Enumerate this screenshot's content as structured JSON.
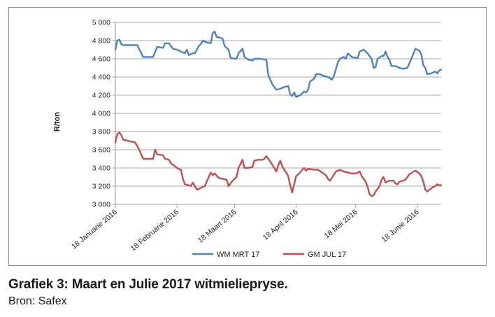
{
  "caption": {
    "title": "Grafiek 3: Maart en Julie 2017 witmieliepryse.",
    "source": "Bron: Safex"
  },
  "chart_data": {
    "type": "line",
    "ylabel": "R/ton",
    "xlabel": "",
    "ylim": [
      3000,
      5000
    ],
    "yticks": [
      3000,
      3200,
      3400,
      3600,
      3800,
      4000,
      4200,
      4400,
      4600,
      4800,
      5000
    ],
    "ytick_labels": [
      "3 000",
      "3 200",
      "3 400",
      "3 600",
      "3 800",
      "4 000",
      "4 200",
      "4 400",
      "4 600",
      "4 800",
      "5 000"
    ],
    "xlim": [
      "2016-01-18",
      "2016-06-30"
    ],
    "xticks": [
      "2016-01-18",
      "2016-02-18",
      "2016-03-18",
      "2016-04-18",
      "2016-05-18",
      "2016-06-18"
    ],
    "xtick_labels": [
      "18 Januarie 2016",
      "18 Februarie 2016",
      "18 Maart 2016",
      "18 April 2016",
      "18 Mei 2016",
      "18 Junie 2016"
    ],
    "grid": true,
    "legend_position": "bottom",
    "series": [
      {
        "name": "WM MRT 17",
        "color": "#4f81bd",
        "points": [
          [
            "2016-01-18",
            4700
          ],
          [
            "2016-01-19",
            4800
          ],
          [
            "2016-01-20",
            4810
          ],
          [
            "2016-01-21",
            4760
          ],
          [
            "2016-01-22",
            4750
          ],
          [
            "2016-01-26",
            4750
          ],
          [
            "2016-01-29",
            4750
          ],
          [
            "2016-02-01",
            4620
          ],
          [
            "2016-02-04",
            4620
          ],
          [
            "2016-02-06",
            4620
          ],
          [
            "2016-02-08",
            4730
          ],
          [
            "2016-02-11",
            4720
          ],
          [
            "2016-02-12",
            4770
          ],
          [
            "2016-02-14",
            4770
          ],
          [
            "2016-02-16",
            4710
          ],
          [
            "2016-02-18",
            4700
          ],
          [
            "2016-02-20",
            4680
          ],
          [
            "2016-02-22",
            4660
          ],
          [
            "2016-02-23",
            4700
          ],
          [
            "2016-02-24",
            4640
          ],
          [
            "2016-02-26",
            4660
          ],
          [
            "2016-02-27",
            4660
          ],
          [
            "2016-02-29",
            4740
          ],
          [
            "2016-03-01",
            4760
          ],
          [
            "2016-03-02",
            4800
          ],
          [
            "2016-03-04",
            4780
          ],
          [
            "2016-03-06",
            4770
          ],
          [
            "2016-03-07",
            4880
          ],
          [
            "2016-03-08",
            4900
          ],
          [
            "2016-03-09",
            4840
          ],
          [
            "2016-03-11",
            4830
          ],
          [
            "2016-03-12",
            4820
          ],
          [
            "2016-03-13",
            4740
          ],
          [
            "2016-03-15",
            4700
          ],
          [
            "2016-03-16",
            4610
          ],
          [
            "2016-03-18",
            4600
          ],
          [
            "2016-03-19",
            4600
          ],
          [
            "2016-03-20",
            4660
          ],
          [
            "2016-03-22",
            4710
          ],
          [
            "2016-03-23",
            4620
          ],
          [
            "2016-03-25",
            4590
          ],
          [
            "2016-03-27",
            4580
          ],
          [
            "2016-03-28",
            4600
          ],
          [
            "2016-03-31",
            4600
          ],
          [
            "2016-04-03",
            4590
          ],
          [
            "2016-04-04",
            4420
          ],
          [
            "2016-04-06",
            4320
          ],
          [
            "2016-04-08",
            4260
          ],
          [
            "2016-04-10",
            4270
          ],
          [
            "2016-04-12",
            4290
          ],
          [
            "2016-04-14",
            4300
          ],
          [
            "2016-04-15",
            4210
          ],
          [
            "2016-04-16",
            4190
          ],
          [
            "2016-04-17",
            4230
          ],
          [
            "2016-04-18",
            4180
          ],
          [
            "2016-04-20",
            4200
          ],
          [
            "2016-04-22",
            4240
          ],
          [
            "2016-04-23",
            4230
          ],
          [
            "2016-04-24",
            4260
          ],
          [
            "2016-04-25",
            4350
          ],
          [
            "2016-04-27",
            4380
          ],
          [
            "2016-04-28",
            4430
          ],
          [
            "2016-04-30",
            4430
          ],
          [
            "2016-05-02",
            4410
          ],
          [
            "2016-05-04",
            4400
          ],
          [
            "2016-05-06",
            4370
          ],
          [
            "2016-05-07",
            4410
          ],
          [
            "2016-05-09",
            4560
          ],
          [
            "2016-05-10",
            4600
          ],
          [
            "2016-05-12",
            4620
          ],
          [
            "2016-05-13",
            4600
          ],
          [
            "2016-05-14",
            4660
          ],
          [
            "2016-05-15",
            4640
          ],
          [
            "2016-05-16",
            4620
          ],
          [
            "2016-05-18",
            4610
          ],
          [
            "2016-05-19",
            4610
          ],
          [
            "2016-05-20",
            4680
          ],
          [
            "2016-05-22",
            4700
          ],
          [
            "2016-05-24",
            4660
          ],
          [
            "2016-05-26",
            4600
          ],
          [
            "2016-05-27",
            4500
          ],
          [
            "2016-05-28",
            4510
          ],
          [
            "2016-05-29",
            4600
          ],
          [
            "2016-05-31",
            4630
          ],
          [
            "2016-06-01",
            4630
          ],
          [
            "2016-06-02",
            4680
          ],
          [
            "2016-06-03",
            4620
          ],
          [
            "2016-06-04",
            4590
          ],
          [
            "2016-06-05",
            4520
          ],
          [
            "2016-06-07",
            4520
          ],
          [
            "2016-06-09",
            4500
          ],
          [
            "2016-06-11",
            4490
          ],
          [
            "2016-06-13",
            4500
          ],
          [
            "2016-06-15",
            4600
          ],
          [
            "2016-06-17",
            4710
          ],
          [
            "2016-06-19",
            4690
          ],
          [
            "2016-06-20",
            4650
          ],
          [
            "2016-06-21",
            4530
          ],
          [
            "2016-06-22",
            4500
          ],
          [
            "2016-06-23",
            4430
          ],
          [
            "2016-06-25",
            4440
          ],
          [
            "2016-06-27",
            4460
          ],
          [
            "2016-06-28",
            4440
          ],
          [
            "2016-06-29",
            4470
          ],
          [
            "2016-06-30",
            4480
          ]
        ]
      },
      {
        "name": "GM JUL 17",
        "color": "#c0504d",
        "points": [
          [
            "2016-01-18",
            3680
          ],
          [
            "2016-01-19",
            3770
          ],
          [
            "2016-01-20",
            3790
          ],
          [
            "2016-01-21",
            3760
          ],
          [
            "2016-01-22",
            3710
          ],
          [
            "2016-01-26",
            3690
          ],
          [
            "2016-01-28",
            3680
          ],
          [
            "2016-01-30",
            3600
          ],
          [
            "2016-02-01",
            3500
          ],
          [
            "2016-02-04",
            3500
          ],
          [
            "2016-02-06",
            3500
          ],
          [
            "2016-02-07",
            3600
          ],
          [
            "2016-02-08",
            3550
          ],
          [
            "2016-02-11",
            3540
          ],
          [
            "2016-02-12",
            3500
          ],
          [
            "2016-02-14",
            3490
          ],
          [
            "2016-02-15",
            3450
          ],
          [
            "2016-02-17",
            3420
          ],
          [
            "2016-02-18",
            3400
          ],
          [
            "2016-02-20",
            3380
          ],
          [
            "2016-02-21",
            3280
          ],
          [
            "2016-02-22",
            3220
          ],
          [
            "2016-02-24",
            3210
          ],
          [
            "2016-02-25",
            3200
          ],
          [
            "2016-02-26",
            3240
          ],
          [
            "2016-02-27",
            3200
          ],
          [
            "2016-02-28",
            3160
          ],
          [
            "2016-03-01",
            3180
          ],
          [
            "2016-03-03",
            3200
          ],
          [
            "2016-03-05",
            3300
          ],
          [
            "2016-03-06",
            3350
          ],
          [
            "2016-03-07",
            3320
          ],
          [
            "2016-03-08",
            3340
          ],
          [
            "2016-03-10",
            3290
          ],
          [
            "2016-03-12",
            3280
          ],
          [
            "2016-03-14",
            3270
          ],
          [
            "2016-03-15",
            3200
          ],
          [
            "2016-03-17",
            3260
          ],
          [
            "2016-03-19",
            3300
          ],
          [
            "2016-03-20",
            3400
          ],
          [
            "2016-03-22",
            3490
          ],
          [
            "2016-03-23",
            3400
          ],
          [
            "2016-03-25",
            3400
          ],
          [
            "2016-03-27",
            3410
          ],
          [
            "2016-03-28",
            3480
          ],
          [
            "2016-03-30",
            3490
          ],
          [
            "2016-04-01",
            3490
          ],
          [
            "2016-04-02",
            3500
          ],
          [
            "2016-04-03",
            3530
          ],
          [
            "2016-04-04",
            3500
          ],
          [
            "2016-04-05",
            3470
          ],
          [
            "2016-04-07",
            3400
          ],
          [
            "2016-04-08",
            3360
          ],
          [
            "2016-04-09",
            3430
          ],
          [
            "2016-04-10",
            3480
          ],
          [
            "2016-04-11",
            3420
          ],
          [
            "2016-04-12",
            3380
          ],
          [
            "2016-04-13",
            3350
          ],
          [
            "2016-04-14",
            3310
          ],
          [
            "2016-04-15",
            3210
          ],
          [
            "2016-04-16",
            3130
          ],
          [
            "2016-04-18",
            3310
          ],
          [
            "2016-04-20",
            3350
          ],
          [
            "2016-04-21",
            3380
          ],
          [
            "2016-04-22",
            3400
          ],
          [
            "2016-04-23",
            3370
          ],
          [
            "2016-04-24",
            3390
          ],
          [
            "2016-04-27",
            3380
          ],
          [
            "2016-04-29",
            3380
          ],
          [
            "2016-05-01",
            3350
          ],
          [
            "2016-05-03",
            3320
          ],
          [
            "2016-05-04",
            3280
          ],
          [
            "2016-05-05",
            3260
          ],
          [
            "2016-05-06",
            3290
          ],
          [
            "2016-05-08",
            3360
          ],
          [
            "2016-05-10",
            3380
          ],
          [
            "2016-05-11",
            3370
          ],
          [
            "2016-05-12",
            3360
          ],
          [
            "2016-05-14",
            3350
          ],
          [
            "2016-05-16",
            3340
          ],
          [
            "2016-05-18",
            3340
          ],
          [
            "2016-05-20",
            3360
          ],
          [
            "2016-05-21",
            3310
          ],
          [
            "2016-05-23",
            3250
          ],
          [
            "2016-05-24",
            3190
          ],
          [
            "2016-05-25",
            3110
          ],
          [
            "2016-05-26",
            3090
          ],
          [
            "2016-05-27",
            3100
          ],
          [
            "2016-05-28",
            3140
          ],
          [
            "2016-05-30",
            3200
          ],
          [
            "2016-05-31",
            3270
          ],
          [
            "2016-06-01",
            3300
          ],
          [
            "2016-06-02",
            3240
          ],
          [
            "2016-06-04",
            3260
          ],
          [
            "2016-06-06",
            3260
          ],
          [
            "2016-06-07",
            3230
          ],
          [
            "2016-06-08",
            3220
          ],
          [
            "2016-06-09",
            3250
          ],
          [
            "2016-06-11",
            3260
          ],
          [
            "2016-06-12",
            3270
          ],
          [
            "2016-06-13",
            3300
          ],
          [
            "2016-06-14",
            3330
          ],
          [
            "2016-06-15",
            3340
          ],
          [
            "2016-06-16",
            3360
          ],
          [
            "2016-06-17",
            3370
          ],
          [
            "2016-06-19",
            3340
          ],
          [
            "2016-06-20",
            3310
          ],
          [
            "2016-06-21",
            3250
          ],
          [
            "2016-06-22",
            3160
          ],
          [
            "2016-06-23",
            3140
          ],
          [
            "2016-06-24",
            3160
          ],
          [
            "2016-06-26",
            3190
          ],
          [
            "2016-06-27",
            3200
          ],
          [
            "2016-06-28",
            3220
          ],
          [
            "2016-06-29",
            3210
          ],
          [
            "2016-06-30",
            3210
          ]
        ]
      }
    ]
  }
}
